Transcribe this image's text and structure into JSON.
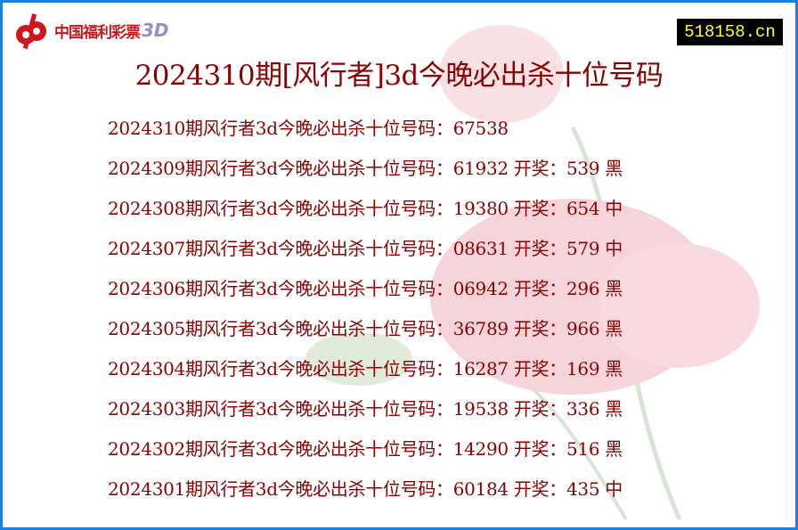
{
  "logo": {
    "text": "中国福利彩票",
    "suffix": "3D"
  },
  "site_badge": "518158.cn",
  "title": "2024310期[风行者]3d今晚必出杀十位号码",
  "rows": [
    "2024310期风行者3d今晚必出杀十位号码：67538",
    "2024309期风行者3d今晚必出杀十位号码：61932 开奖：539 黑",
    "2024308期风行者3d今晚必出杀十位号码：19380 开奖：654 中",
    "2024307期风行者3d今晚必出杀十位号码：08631 开奖：579 中",
    "2024306期风行者3d今晚必出杀十位号码：06942 开奖：296 黑",
    "2024305期风行者3d今晚必出杀十位号码：36789 开奖：966 黑",
    "2024304期风行者3d今晚必出杀十位号码：16287 开奖：169 黑",
    "2024303期风行者3d今晚必出杀十位号码：19538 开奖：336 黑",
    "2024302期风行者3d今晚必出杀十位号码：14290 开奖：516 黑",
    "2024301期风行者3d今晚必出杀十位号码：60184 开奖：435 中"
  ],
  "colors": {
    "border": "#1a7fe0",
    "text": "#8b0000",
    "badge_bg": "#000000",
    "badge_text": "#ffff33"
  }
}
